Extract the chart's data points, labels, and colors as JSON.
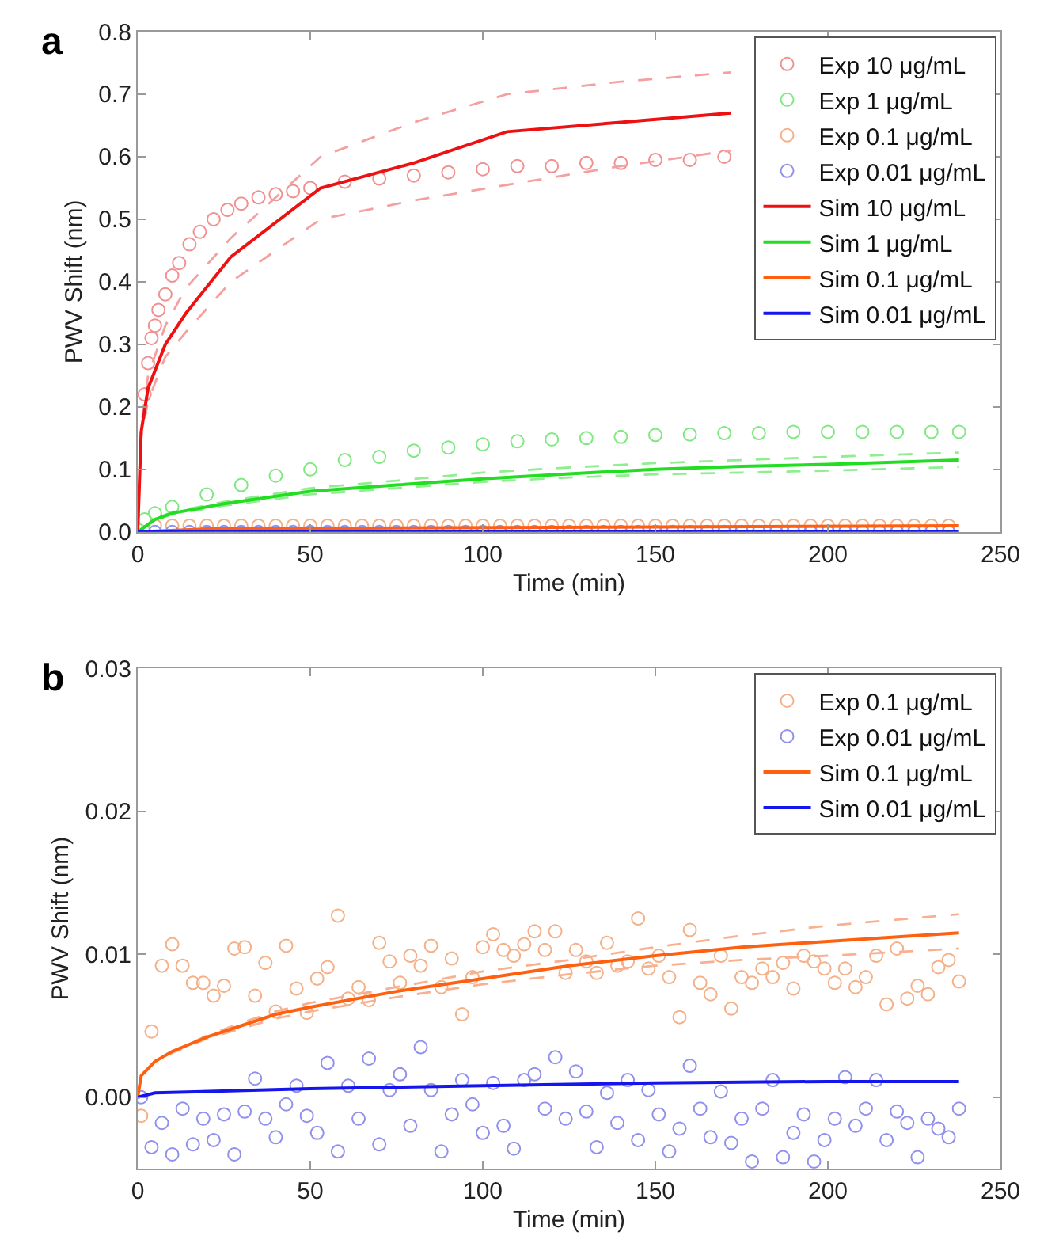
{
  "chart_data": [
    {
      "type": "scatter",
      "xlabel": "Time (min)",
      "ylabel": "PWV Shift (nm)",
      "annotations": [
        "a"
      ],
      "xlim": [
        0,
        250
      ],
      "xticks": [
        0,
        50,
        100,
        150,
        200,
        250
      ],
      "ylim": [
        0,
        0.8
      ],
      "yticks": [
        {
          "value": 0,
          "label": "0.0"
        },
        {
          "value": 0.1,
          "label": "0.1"
        },
        {
          "value": 0.2,
          "label": "0.2"
        },
        {
          "value": 0.3,
          "label": "0.3"
        },
        {
          "value": 0.4,
          "label": "0.4"
        },
        {
          "value": 0.5,
          "label": "0.5"
        },
        {
          "value": 0.6,
          "label": "0.6"
        },
        {
          "value": 0.7,
          "label": "0.7"
        },
        {
          "value": 0.8,
          "label": "0.8"
        }
      ],
      "legend": "top right",
      "series": [
        {
          "name": "Exp 10 μg/mL",
          "marker": "circle",
          "color": "#f09090",
          "x": [
            2,
            3,
            4,
            5,
            6,
            8,
            10,
            12,
            15,
            18,
            22,
            26,
            30,
            35,
            40,
            45,
            50,
            60,
            70,
            80,
            90,
            100,
            110,
            120,
            130,
            140,
            150,
            160,
            170
          ],
          "values": [
            0.22,
            0.27,
            0.31,
            0.33,
            0.355,
            0.38,
            0.41,
            0.43,
            0.46,
            0.48,
            0.5,
            0.515,
            0.525,
            0.535,
            0.54,
            0.545,
            0.55,
            0.56,
            0.565,
            0.57,
            0.575,
            0.58,
            0.585,
            0.585,
            0.59,
            0.59,
            0.595,
            0.595,
            0.6
          ]
        },
        {
          "name": "Exp 1 μg/mL",
          "marker": "circle",
          "color": "#80e880",
          "x": [
            2,
            5,
            10,
            20,
            30,
            40,
            50,
            60,
            70,
            80,
            90,
            100,
            110,
            120,
            130,
            140,
            150,
            160,
            170,
            180,
            190,
            200,
            210,
            220,
            230,
            238
          ],
          "values": [
            0.02,
            0.03,
            0.04,
            0.06,
            0.075,
            0.09,
            0.1,
            0.115,
            0.12,
            0.13,
            0.135,
            0.14,
            0.145,
            0.148,
            0.15,
            0.152,
            0.155,
            0.156,
            0.158,
            0.158,
            0.16,
            0.16,
            0.16,
            0.16,
            0.16,
            0.16
          ]
        },
        {
          "name": "Exp 0.1 μg/mL",
          "marker": "circle",
          "color": "#f5b088",
          "x": [
            5,
            10,
            15,
            20,
            25,
            30,
            35,
            40,
            45,
            50,
            55,
            60,
            65,
            70,
            75,
            80,
            85,
            90,
            95,
            100,
            105,
            110,
            115,
            120,
            125,
            130,
            135,
            140,
            145,
            150,
            155,
            160,
            165,
            170,
            175,
            180,
            185,
            190,
            195,
            200,
            205,
            210,
            215,
            220,
            225,
            230,
            235
          ],
          "values": [
            0.01,
            0.01,
            0.01,
            0.01,
            0.01,
            0.01,
            0.01,
            0.01,
            0.01,
            0.01,
            0.01,
            0.01,
            0.01,
            0.01,
            0.01,
            0.01,
            0.01,
            0.01,
            0.01,
            0.01,
            0.01,
            0.01,
            0.01,
            0.01,
            0.01,
            0.01,
            0.01,
            0.01,
            0.01,
            0.01,
            0.01,
            0.01,
            0.01,
            0.01,
            0.01,
            0.01,
            0.01,
            0.01,
            0.01,
            0.01,
            0.01,
            0.01,
            0.01,
            0.01,
            0.01,
            0.01,
            0.01
          ]
        },
        {
          "name": "Exp 0.01 μg/mL",
          "marker": "circle",
          "color": "#9090ee",
          "x": [
            5,
            10,
            15,
            20,
            25,
            30,
            35,
            40,
            45,
            50,
            55,
            60,
            65,
            70,
            75,
            80,
            85,
            90,
            95,
            100,
            105,
            110,
            115,
            120,
            125,
            130,
            135,
            140,
            145,
            150,
            155,
            160,
            165,
            170,
            175,
            180,
            185,
            190,
            195,
            200,
            205,
            210,
            215,
            220,
            225,
            230,
            235
          ],
          "values": [
            0,
            0,
            0,
            0,
            0,
            0,
            0,
            0,
            0,
            0,
            0,
            0,
            0,
            0,
            0,
            0,
            0,
            0,
            0,
            0,
            0,
            0,
            0,
            0,
            0,
            0,
            0,
            0,
            0,
            0,
            0,
            0,
            0,
            0,
            0,
            0,
            0,
            0,
            0,
            0,
            0,
            0,
            0,
            0,
            0,
            0,
            0
          ]
        },
        {
          "type": "line",
          "line_style": "dashed",
          "color": "#f4a0a0",
          "x": [
            0,
            1,
            3,
            8,
            14,
            27,
            53,
            80,
            107,
            140,
            172
          ],
          "values": [
            0,
            0.17,
            0.25,
            0.33,
            0.39,
            0.47,
            0.6,
            0.655,
            0.7,
            0.72,
            0.735
          ]
        },
        {
          "type": "line",
          "line_style": "dashed",
          "color": "#f4a0a0",
          "x": [
            0,
            1,
            3,
            8,
            14,
            27,
            53,
            80,
            107,
            140,
            172
          ],
          "values": [
            0,
            0.15,
            0.21,
            0.28,
            0.32,
            0.4,
            0.5,
            0.53,
            0.555,
            0.585,
            0.61
          ]
        },
        {
          "type": "line",
          "line_style": "dashed",
          "color": "#90ee90",
          "x": [
            0,
            5,
            10,
            25,
            50,
            75,
            100,
            125,
            150,
            175,
            200,
            238
          ],
          "values": [
            0,
            0.021,
            0.032,
            0.048,
            0.07,
            0.082,
            0.095,
            0.103,
            0.11,
            0.115,
            0.12,
            0.127
          ]
        },
        {
          "type": "line",
          "line_style": "dashed",
          "color": "#90ee90",
          "x": [
            0,
            5,
            10,
            25,
            50,
            75,
            100,
            125,
            150,
            175,
            200,
            238
          ],
          "values": [
            0,
            0.019,
            0.028,
            0.042,
            0.06,
            0.07,
            0.08,
            0.087,
            0.092,
            0.095,
            0.098,
            0.104
          ]
        },
        {
          "name": "Sim 10 μg/mL",
          "type": "line",
          "line_style": "solid",
          "color": "#ee1111",
          "x": [
            0,
            1,
            3,
            8,
            14,
            27,
            53,
            80,
            107,
            140,
            172
          ],
          "values": [
            0,
            0.16,
            0.23,
            0.3,
            0.35,
            0.44,
            0.55,
            0.59,
            0.64,
            0.655,
            0.67
          ]
        },
        {
          "name": "Sim 1 μg/mL",
          "type": "line",
          "line_style": "solid",
          "color": "#22dd22",
          "x": [
            0,
            5,
            10,
            25,
            50,
            75,
            100,
            125,
            150,
            175,
            200,
            238
          ],
          "values": [
            0,
            0.02,
            0.03,
            0.045,
            0.065,
            0.075,
            0.085,
            0.093,
            0.1,
            0.105,
            0.108,
            0.115
          ]
        },
        {
          "name": "Sim 0.1 μg/mL",
          "type": "line",
          "line_style": "solid",
          "color": "#ff6010",
          "x": [
            0,
            20,
            238
          ],
          "values": [
            0,
            0.005,
            0.01
          ]
        },
        {
          "name": "Sim 0.01 μg/mL",
          "type": "line",
          "line_style": "solid",
          "color": "#1515ee",
          "x": [
            0,
            238
          ],
          "values": [
            0,
            0
          ]
        }
      ]
    },
    {
      "type": "scatter",
      "xlabel": "Time (min)",
      "ylabel": "PWV Shift (nm)",
      "annotations": [
        "b"
      ],
      "xlim": [
        0,
        250
      ],
      "xticks": [
        0,
        50,
        100,
        150,
        200,
        250
      ],
      "ylim": [
        -0.005,
        0.03
      ],
      "yticks": [
        {
          "value": 0,
          "label": "0.00"
        },
        {
          "value": 0.01,
          "label": "0.01"
        },
        {
          "value": 0.02,
          "label": "0.02"
        },
        {
          "value": 0.03,
          "label": "0.03"
        }
      ],
      "legend": "top right",
      "series": [
        {
          "name": "Exp 0.1 μg/mL",
          "marker": "circle",
          "color": "#f5b088",
          "x": [
            1,
            4,
            7,
            10,
            13,
            16,
            19,
            22,
            25,
            28,
            31,
            34,
            37,
            40,
            43,
            46,
            49,
            52,
            55,
            58,
            61,
            64,
            67,
            70,
            73,
            76,
            79,
            82,
            85,
            88,
            91,
            94,
            97,
            100,
            103,
            106,
            109,
            112,
            115,
            118,
            121,
            124,
            127,
            130,
            133,
            136,
            139,
            142,
            145,
            148,
            151,
            154,
            157,
            160,
            163,
            166,
            169,
            172,
            175,
            178,
            181,
            184,
            187,
            190,
            193,
            196,
            199,
            202,
            205,
            208,
            211,
            214,
            217,
            220,
            223,
            226,
            229,
            232,
            235,
            238
          ],
          "values": [
            -0.0013,
            0.0046,
            0.0092,
            0.0107,
            0.0092,
            0.008,
            0.008,
            0.0071,
            0.0078,
            0.0104,
            0.0105,
            0.0071,
            0.0094,
            0.006,
            0.0106,
            0.0076,
            0.0059,
            0.0083,
            0.0091,
            0.0127,
            0.0069,
            0.0077,
            0.0068,
            0.0108,
            0.0095,
            0.008,
            0.0099,
            0.0092,
            0.0106,
            0.0077,
            0.0097,
            0.0058,
            0.0084,
            0.0105,
            0.0114,
            0.0103,
            0.0099,
            0.0107,
            0.0116,
            0.0103,
            0.0116,
            0.0087,
            0.0103,
            0.0095,
            0.0087,
            0.0108,
            0.0092,
            0.0095,
            0.0125,
            0.009,
            0.0099,
            0.0084,
            0.0056,
            0.0117,
            0.008,
            0.0072,
            0.0099,
            0.0062,
            0.0084,
            0.008,
            0.009,
            0.0084,
            0.0094,
            0.0076,
            0.0099,
            0.0095,
            0.009,
            0.008,
            0.009,
            0.0077,
            0.0084,
            0.0099,
            0.0065,
            0.0104,
            0.0069,
            0.0078,
            0.0072,
            0.0091,
            0.0096,
            0.0081
          ]
        },
        {
          "name": "Exp 0.01 μg/mL",
          "marker": "circle",
          "color": "#9090ee",
          "x": [
            1,
            4,
            7,
            10,
            13,
            16,
            19,
            22,
            25,
            28,
            31,
            34,
            37,
            40,
            43,
            46,
            49,
            52,
            55,
            58,
            61,
            64,
            67,
            70,
            73,
            76,
            79,
            82,
            85,
            88,
            91,
            94,
            97,
            100,
            103,
            106,
            109,
            112,
            115,
            118,
            121,
            124,
            127,
            130,
            133,
            136,
            139,
            142,
            145,
            148,
            151,
            154,
            157,
            160,
            163,
            166,
            169,
            172,
            175,
            178,
            181,
            184,
            187,
            190,
            193,
            196,
            199,
            202,
            205,
            208,
            211,
            214,
            217,
            220,
            223,
            226,
            229,
            232,
            235,
            238
          ],
          "values": [
            0,
            -0.0035,
            -0.0018,
            -0.004,
            -0.0008,
            -0.0033,
            -0.0015,
            -0.003,
            -0.0012,
            -0.004,
            -0.001,
            0.0013,
            -0.0015,
            -0.0028,
            -0.0005,
            0.0008,
            -0.0013,
            -0.0025,
            0.0024,
            -0.0038,
            0.0008,
            -0.0015,
            0.0027,
            -0.0033,
            0.0005,
            0.0016,
            -0.002,
            0.0035,
            0.0005,
            -0.0038,
            -0.0012,
            0.0012,
            -0.0005,
            -0.0025,
            0.001,
            -0.002,
            -0.0036,
            0.0012,
            0.0016,
            -0.0008,
            0.0028,
            -0.0015,
            0.0018,
            -0.001,
            -0.0035,
            0.0003,
            -0.0018,
            0.0012,
            -0.003,
            0.0005,
            -0.0012,
            -0.0038,
            -0.0022,
            0.0022,
            -0.0008,
            -0.0028,
            0.0004,
            -0.0032,
            -0.0015,
            -0.0045,
            -0.0008,
            0.0012,
            -0.0042,
            -0.0025,
            -0.0012,
            -0.0045,
            -0.003,
            -0.0015,
            0.0014,
            -0.002,
            -0.0008,
            0.0012,
            -0.003,
            -0.001,
            -0.0018,
            -0.0042,
            -0.0015,
            -0.0022,
            -0.0028,
            -0.0008
          ]
        },
        {
          "type": "line",
          "line_style": "dashed",
          "color": "#f8b090",
          "x": [
            0,
            1,
            5,
            10,
            20,
            30,
            40,
            50,
            75,
            100,
            125,
            150,
            175,
            200,
            238
          ],
          "values": [
            0,
            0.0015,
            0.0025,
            0.0032,
            0.0043,
            0.0052,
            0.006,
            0.0066,
            0.0077,
            0.0088,
            0.0096,
            0.0105,
            0.0113,
            0.012,
            0.0128
          ]
        },
        {
          "type": "line",
          "line_style": "dashed",
          "color": "#f8b090",
          "x": [
            0,
            1,
            5,
            10,
            20,
            30,
            40,
            50,
            75,
            100,
            125,
            150,
            175,
            200,
            238
          ],
          "values": [
            0,
            0.0015,
            0.0025,
            0.0031,
            0.0041,
            0.0048,
            0.0055,
            0.006,
            0.007,
            0.0079,
            0.0086,
            0.0092,
            0.0096,
            0.0099,
            0.0104
          ]
        },
        {
          "name": "Sim 0.1 μg/mL",
          "type": "line",
          "line_style": "solid",
          "color": "#ff6010",
          "x": [
            0,
            1,
            5,
            10,
            20,
            30,
            40,
            50,
            75,
            100,
            125,
            150,
            175,
            200,
            238
          ],
          "values": [
            0,
            0.0015,
            0.0025,
            0.0032,
            0.0042,
            0.005,
            0.0058,
            0.0063,
            0.0074,
            0.0083,
            0.0092,
            0.0099,
            0.0105,
            0.0109,
            0.0115
          ]
        },
        {
          "name": "Sim 0.01 μg/mL",
          "type": "line",
          "line_style": "solid",
          "color": "#1515ee",
          "x": [
            0,
            5,
            50,
            100,
            150,
            200,
            238
          ],
          "values": [
            0,
            0.0003,
            0.0006,
            0.0008,
            0.001,
            0.0011,
            0.0011
          ]
        }
      ]
    }
  ]
}
